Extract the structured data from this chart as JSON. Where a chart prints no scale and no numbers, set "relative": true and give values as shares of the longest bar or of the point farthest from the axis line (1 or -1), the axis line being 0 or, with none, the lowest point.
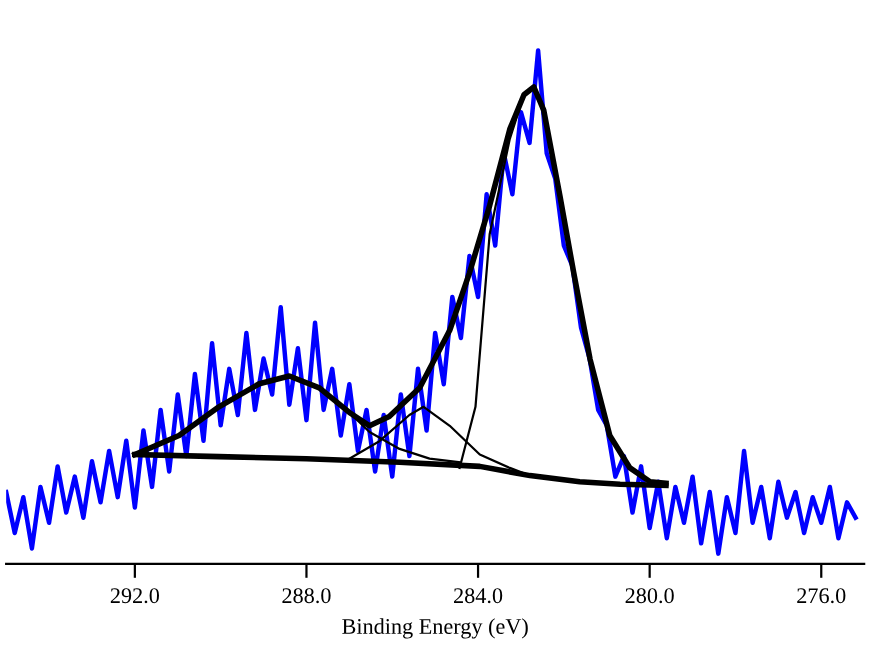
{
  "chart_data": {
    "type": "line",
    "relative": true,
    "xlabel": "Binding Energy (eV)",
    "xlim": [
      295,
      275
    ],
    "xticks": [
      {
        "value": 292,
        "label": "292.0"
      },
      {
        "value": 288,
        "label": "288.0"
      },
      {
        "value": 284,
        "label": "284.0"
      },
      {
        "value": 280,
        "label": "280.0"
      },
      {
        "value": 276,
        "label": "276.0"
      }
    ],
    "grid": false,
    "legend": false,
    "tick_labels": "x",
    "series": [
      {
        "color": "#0000ff",
        "x": [
          295.0,
          294.8,
          294.6,
          294.4,
          294.2,
          294.0,
          293.8,
          293.6,
          293.4,
          293.2,
          293.0,
          292.8,
          292.6,
          292.4,
          292.2,
          292.0,
          291.8,
          291.6,
          291.4,
          291.2,
          291.0,
          290.8,
          290.6,
          290.4,
          290.2,
          290.0,
          289.8,
          289.6,
          289.4,
          289.2,
          289.0,
          288.8,
          288.6,
          288.4,
          288.2,
          288.0,
          287.8,
          287.6,
          287.4,
          287.2,
          287.0,
          286.8,
          286.6,
          286.4,
          286.2,
          286.0,
          285.8,
          285.6,
          285.4,
          285.2,
          285.0,
          284.8,
          284.6,
          284.4,
          284.2,
          284.0,
          283.8,
          283.6,
          283.4,
          283.2,
          283.0,
          282.8,
          282.6,
          282.4,
          282.2,
          282.0,
          281.8,
          281.6,
          281.4,
          281.2,
          281.0,
          280.8,
          280.6,
          280.4,
          280.2,
          280.0,
          279.8,
          279.6,
          279.4,
          279.2,
          279.0,
          278.8,
          278.6,
          278.4,
          278.2,
          278.0,
          277.8,
          277.6,
          277.4,
          277.2,
          277.0,
          276.8,
          276.6,
          276.4,
          276.2,
          276.0,
          275.8,
          275.6,
          275.4,
          275.2
        ],
        "values": [
          0.14,
          0.06,
          0.13,
          0.03,
          0.15,
          0.08,
          0.19,
          0.1,
          0.17,
          0.09,
          0.2,
          0.12,
          0.22,
          0.13,
          0.24,
          0.11,
          0.26,
          0.15,
          0.3,
          0.18,
          0.33,
          0.21,
          0.37,
          0.24,
          0.43,
          0.27,
          0.38,
          0.29,
          0.45,
          0.3,
          0.4,
          0.33,
          0.5,
          0.31,
          0.42,
          0.28,
          0.47,
          0.3,
          0.38,
          0.25,
          0.35,
          0.22,
          0.3,
          0.18,
          0.29,
          0.17,
          0.33,
          0.21,
          0.38,
          0.26,
          0.45,
          0.35,
          0.52,
          0.44,
          0.6,
          0.52,
          0.72,
          0.62,
          0.8,
          0.72,
          0.88,
          0.82,
          1.0,
          0.8,
          0.75,
          0.62,
          0.58,
          0.46,
          0.4,
          0.3,
          0.27,
          0.17,
          0.21,
          0.1,
          0.19,
          0.07,
          0.16,
          0.05,
          0.15,
          0.08,
          0.17,
          0.04,
          0.14,
          0.02,
          0.13,
          0.06,
          0.22,
          0.08,
          0.15,
          0.05,
          0.16,
          0.09,
          0.14,
          0.06,
          0.13,
          0.08,
          0.15,
          0.05,
          0.12,
          0.09
        ]
      },
      {
        "color": "#000000",
        "x": [
          292.0,
          290.97,
          290.04,
          289.1,
          288.4,
          287.7,
          287.0,
          286.53,
          286.07,
          285.36,
          284.66,
          284.2,
          283.73,
          283.26,
          282.93,
          282.7,
          282.47,
          282.09,
          281.77,
          281.39,
          280.93,
          280.46,
          279.99,
          279.62
        ],
        "values": [
          0.213,
          0.25,
          0.306,
          0.351,
          0.366,
          0.343,
          0.295,
          0.269,
          0.287,
          0.343,
          0.455,
          0.567,
          0.698,
          0.847,
          0.914,
          0.929,
          0.884,
          0.716,
          0.567,
          0.399,
          0.25,
          0.187,
          0.16,
          0.157
        ]
      },
      {
        "color": "#000000",
        "x": [
          292.0,
          290.04,
          288.0,
          285.83,
          283.96,
          282.79,
          281.63,
          280.69,
          279.62
        ],
        "values": [
          0.213,
          0.209,
          0.205,
          0.198,
          0.19,
          0.172,
          0.16,
          0.155,
          0.153
        ]
      },
      {
        "color": "#000000",
        "x": [
          292.0,
          290.97,
          290.04,
          289.1,
          288.4,
          287.7,
          287.0,
          286.53,
          285.83,
          285.13,
          284.43
        ],
        "values": [
          0.213,
          0.25,
          0.306,
          0.351,
          0.366,
          0.343,
          0.295,
          0.257,
          0.224,
          0.205,
          0.198
        ]
      },
      {
        "color": "#000000",
        "x": [
          287.0,
          286.3,
          285.6,
          285.27,
          284.66,
          283.96,
          283.26,
          282.79
        ],
        "values": [
          0.205,
          0.239,
          0.29,
          0.306,
          0.269,
          0.213,
          0.187,
          0.172
        ]
      },
      {
        "color": "#000000",
        "x": [
          284.43,
          284.06,
          283.73,
          283.26,
          282.93,
          282.7,
          282.47,
          282.09,
          281.77,
          281.39,
          280.93,
          280.46,
          279.99
        ],
        "values": [
          0.187,
          0.306,
          0.642,
          0.828,
          0.914,
          0.929,
          0.884,
          0.716,
          0.567,
          0.399,
          0.25,
          0.187,
          0.16
        ]
      }
    ]
  }
}
